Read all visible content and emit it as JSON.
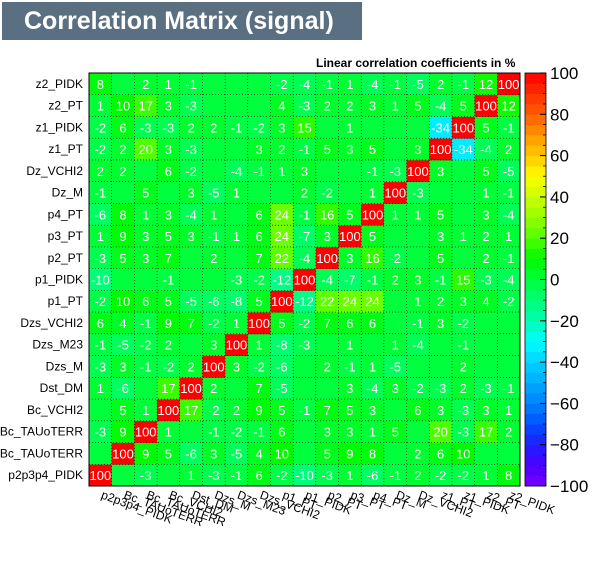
{
  "chart_data": {
    "type": "heatmap",
    "title": "Correlation Matrix (signal)",
    "subtitle": "Linear correlation coefficients in %",
    "variables": [
      "p2p3p4_PIDK",
      "Bc_TAUoTERR",
      "Bc_TAUoTERR",
      "Bc_VCHI2",
      "Dst_DM",
      "Dzs_M",
      "Dzs_M23",
      "Dzs_VCHI2",
      "p1_PT",
      "p1_PIDK",
      "p2_PT",
      "p3_PT",
      "p4_PT",
      "Dz_M",
      "Dz_VCHI2",
      "z1_PT",
      "z1_PIDK",
      "z2_PT",
      "z2_PIDK"
    ],
    "row_labels": [
      "p2p3p4_PIDK",
      "Bc_TAUoTERR",
      "Bc_TAUoTERR",
      "Bc_VCHI2",
      "Dst_DM",
      "Dzs_M",
      "Dzs_M23",
      "Dzs_VCHI2",
      "p1_PT",
      "p1_PIDK",
      "p2_PT",
      "p3_PT",
      "p4_PT",
      "Dz_M",
      "Dz_VCHI2",
      "z1_PT",
      "z1_PIDK",
      "z2_PT",
      "z2_PIDK"
    ],
    "col_labels": [
      "p2p3p4_PIDK",
      "Bc_TAUoTERR",
      "Bc_TAUoTERR",
      "Bc_VCHI2",
      "Dst_DM",
      "Dzs_M",
      "Dzs_M23",
      "Dzs_VCHI2",
      "p1_PT",
      "p1_PIDK",
      "p2_PT",
      "p3_PT",
      "p4_PT",
      "Dz_M",
      "Dz_VCHI2",
      "z1_PT",
      "z1_PIDK",
      "z2_PT",
      "z2_PIDK"
    ],
    "matrix": [
      [
        100,
        0,
        -3,
        0,
        1,
        -3,
        -1,
        6,
        -2,
        -10,
        -3,
        1,
        -6,
        -1,
        2,
        -2,
        -2,
        1,
        8
      ],
      [
        0,
        100,
        9,
        5,
        -6,
        3,
        -5,
        4,
        10,
        0,
        5,
        9,
        8,
        0,
        2,
        6,
        10,
        0,
        0
      ],
      [
        -3,
        9,
        100,
        1,
        0,
        -1,
        -2,
        -1,
        6,
        0,
        3,
        3,
        1,
        5,
        0,
        20,
        -3,
        17,
        2
      ],
      [
        0,
        5,
        1,
        100,
        17,
        -2,
        2,
        9,
        5,
        -1,
        7,
        5,
        3,
        0,
        6,
        3,
        -3,
        3,
        1
      ],
      [
        1,
        -6,
        0,
        17,
        100,
        2,
        0,
        7,
        -5,
        0,
        0,
        3,
        -4,
        3,
        -2,
        -3,
        2,
        -3,
        -1
      ],
      [
        -3,
        3,
        -1,
        -2,
        2,
        100,
        3,
        -2,
        -6,
        0,
        2,
        -1,
        1,
        -5,
        0,
        0,
        2,
        0,
        0
      ],
      [
        -1,
        -5,
        -2,
        2,
        0,
        3,
        100,
        1,
        -8,
        -3,
        0,
        1,
        0,
        1,
        -4,
        0,
        -1,
        0,
        0
      ],
      [
        6,
        4,
        -1,
        9,
        7,
        -2,
        1,
        100,
        5,
        -2,
        7,
        6,
        6,
        0,
        -1,
        3,
        -2,
        0,
        0
      ],
      [
        -2,
        10,
        6,
        5,
        -5,
        -6,
        -8,
        5,
        100,
        -12,
        22,
        24,
        24,
        0,
        1,
        2,
        3,
        4,
        -2
      ],
      [
        -10,
        0,
        0,
        -1,
        0,
        0,
        -3,
        -2,
        -12,
        100,
        -4,
        -7,
        -1,
        2,
        3,
        -1,
        15,
        -3,
        -4
      ],
      [
        -3,
        5,
        3,
        7,
        0,
        2,
        0,
        7,
        22,
        -4,
        100,
        3,
        16,
        -2,
        0,
        5,
        0,
        2,
        -1
      ],
      [
        1,
        9,
        3,
        5,
        3,
        -1,
        1,
        6,
        24,
        -7,
        3,
        100,
        5,
        0,
        0,
        3,
        1,
        2,
        1
      ],
      [
        -6,
        8,
        1,
        3,
        -4,
        1,
        0,
        6,
        24,
        -1,
        16,
        5,
        100,
        1,
        1,
        5,
        0,
        3,
        -4
      ],
      [
        -1,
        0,
        5,
        0,
        3,
        -5,
        1,
        0,
        0,
        2,
        -2,
        0,
        1,
        100,
        -3,
        0,
        0,
        1,
        -1
      ],
      [
        2,
        2,
        0,
        6,
        -2,
        0,
        -4,
        -1,
        1,
        3,
        0,
        0,
        -1,
        -3,
        100,
        3,
        0,
        5,
        -5
      ],
      [
        -2,
        2,
        20,
        3,
        -3,
        0,
        0,
        3,
        2,
        -1,
        5,
        3,
        5,
        0,
        3,
        100,
        -34,
        -4,
        2
      ],
      [
        -2,
        6,
        -3,
        -3,
        2,
        2,
        -1,
        -2,
        3,
        15,
        0,
        1,
        0,
        0,
        0,
        -34,
        100,
        5,
        -1
      ],
      [
        1,
        10,
        17,
        3,
        -3,
        0,
        0,
        0,
        4,
        -3,
        2,
        2,
        3,
        1,
        5,
        -4,
        5,
        100,
        12
      ],
      [
        8,
        0,
        2,
        1,
        -1,
        0,
        0,
        0,
        -2,
        -4,
        -1,
        1,
        -4,
        -1,
        -5,
        2,
        -1,
        12,
        100
      ]
    ],
    "zlim": [
      -100,
      100
    ],
    "colorbar_ticks": [
      "100",
      "80",
      "60",
      "40",
      "20",
      "0",
      "−20",
      "−40",
      "−60",
      "−80",
      "−100"
    ],
    "grid": true
  }
}
